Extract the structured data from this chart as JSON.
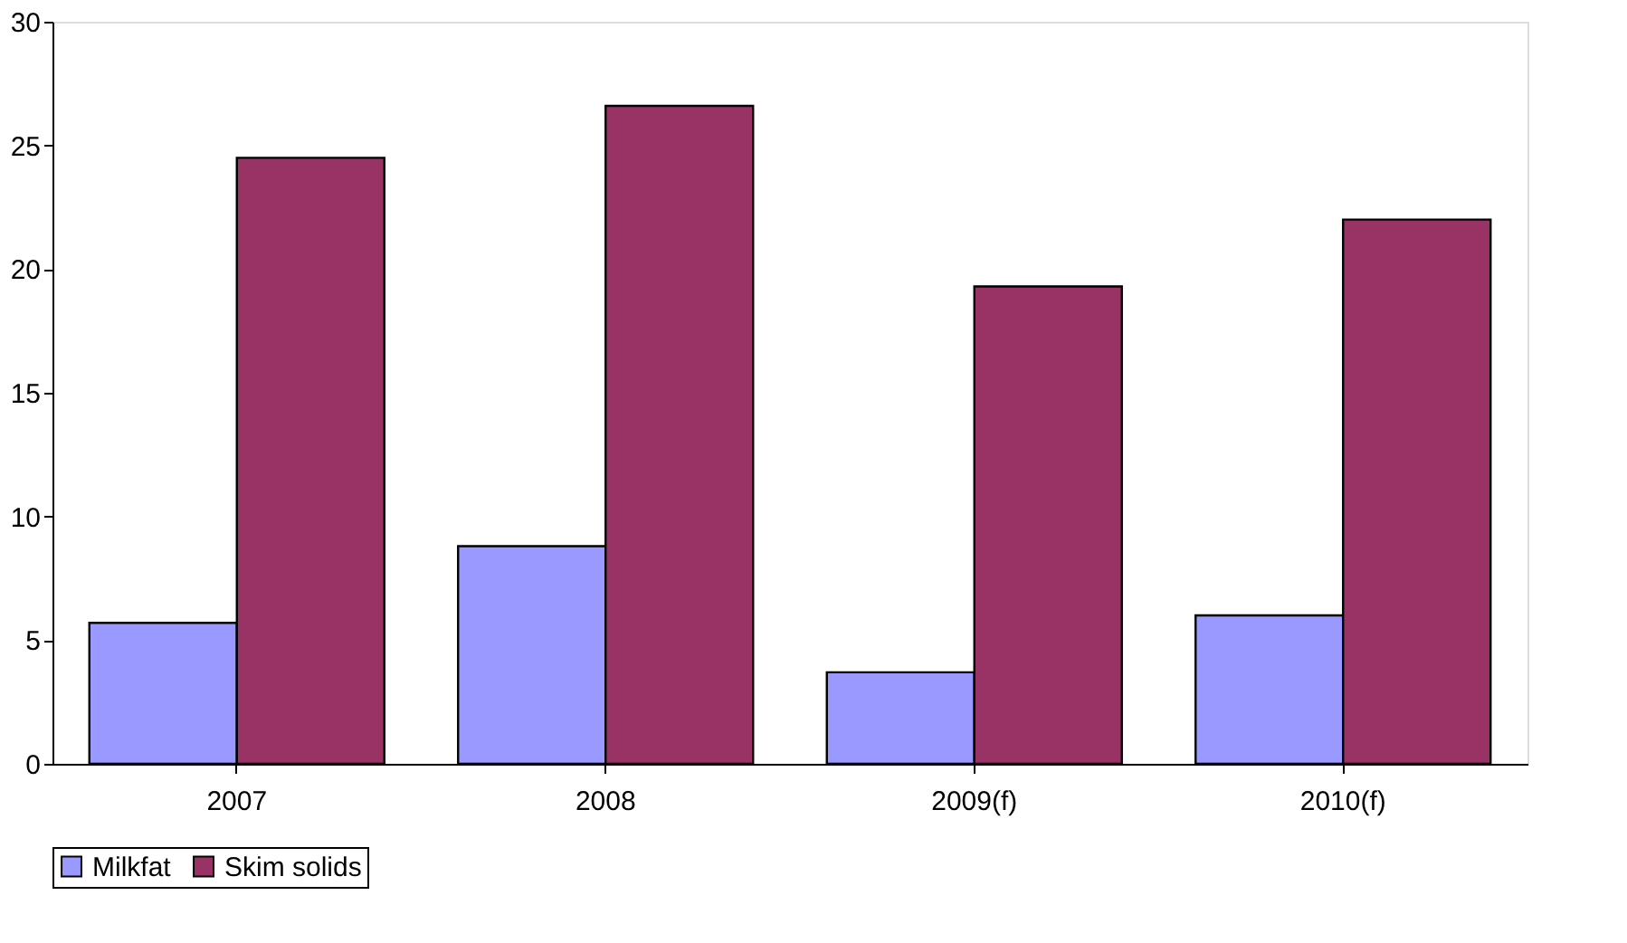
{
  "chart_data": {
    "type": "bar",
    "categories": [
      "2007",
      "2008",
      "2009(f)",
      "2010(f)"
    ],
    "series": [
      {
        "name": "Milkfat",
        "color": "#9999ff",
        "values": [
          5.7,
          8.8,
          3.7,
          6.0
        ]
      },
      {
        "name": "Skim solids",
        "color": "#993366",
        "values": [
          24.5,
          26.6,
          19.3,
          22.0
        ]
      }
    ],
    "ylim": [
      0,
      30
    ],
    "yticks": [
      0,
      5,
      10,
      15,
      20,
      25,
      30
    ],
    "grid": false,
    "legend": "bottom"
  }
}
